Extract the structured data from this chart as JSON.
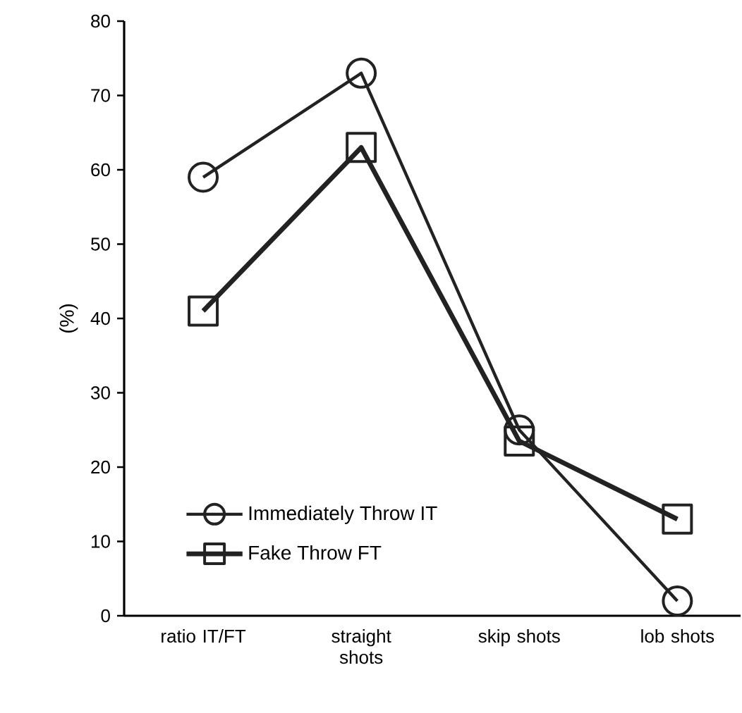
{
  "chart_data": {
    "type": "line",
    "ylabel": "(%)",
    "categories": [
      "ratio IT/FT",
      "straight shots",
      "skip shots",
      "lob shots"
    ],
    "series": [
      {
        "name": "Immediately Throw IT",
        "color": "#222222",
        "marker": "circle",
        "values": [
          59,
          73,
          25,
          2
        ]
      },
      {
        "name": "Fake Throw FT",
        "color": "#222222",
        "marker": "square",
        "values": [
          41,
          63,
          23.5,
          13
        ]
      }
    ],
    "ylim": [
      0,
      80
    ],
    "yticks": [
      0,
      10,
      20,
      30,
      40,
      50,
      60,
      70,
      80
    ],
    "grid": false,
    "legend": "bottom left"
  }
}
